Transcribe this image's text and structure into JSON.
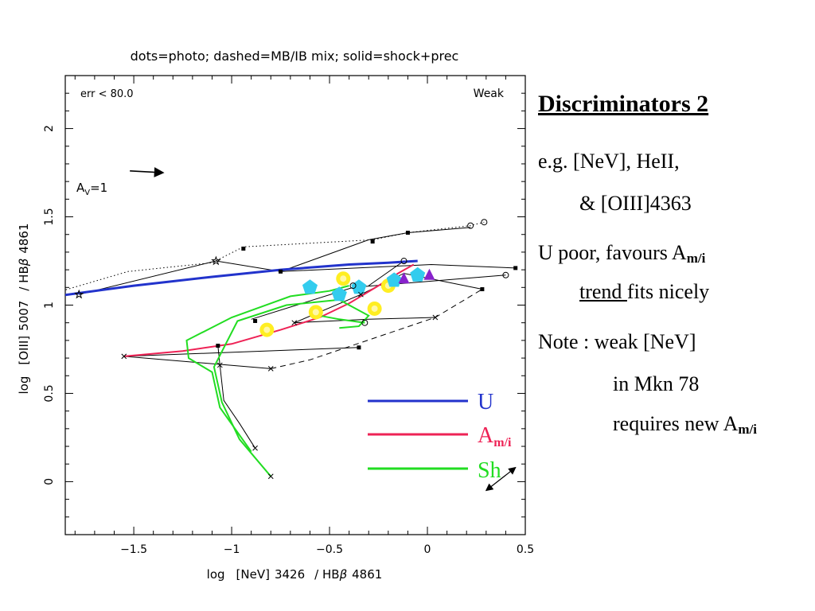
{
  "slide": {
    "title": "Discriminators 2",
    "bullets": [
      "e.g. [NeV], HeII,",
      "& [OIII]4363",
      "U poor,  favours A",
      "m/i",
      "trend ",
      "fits nicely",
      "Note : weak [NeV]",
      "in Mkn 78",
      "requires new A",
      "m/i"
    ]
  },
  "chart_data": {
    "type": "scatter",
    "title": "dots=photo; dashed=MB/IB mix; solid=shock+prec",
    "xlabel_parts": [
      "log",
      "[NeV]",
      "3426",
      "/ HB",
      "β",
      "4861"
    ],
    "ylabel_parts": [
      "log",
      "[OIII]",
      "5007",
      "/ HB",
      "β",
      "4861"
    ],
    "xlim": [
      -1.85,
      0.5
    ],
    "ylim": [
      -0.3,
      2.3
    ],
    "xticks": [
      -1.5,
      -1,
      -0.5,
      0,
      0.5
    ],
    "xtick_labels": [
      "−1.5",
      "−1",
      "−0.5",
      "0",
      "0.5"
    ],
    "yticks": [
      0,
      0.5,
      1,
      1.5,
      2
    ],
    "ytick_labels": [
      "0",
      "0.5",
      "1",
      "1.5",
      "2"
    ],
    "corner_labels": {
      "err": "err <  80.0",
      "weak": "Weak"
    },
    "av_label": {
      "text": "A",
      "sub": "V",
      "suffix": "=1"
    },
    "av_arrow": {
      "from": [
        -1.52,
        1.76
      ],
      "to": [
        -1.35,
        1.75
      ]
    },
    "colors": {
      "U": "#2233cc",
      "Am": "#ee2255",
      "Sh": "#22dd22",
      "cyan": "#33ccee",
      "yellow": "#ffee22",
      "purple": "#8822cc",
      "black": "#000000"
    },
    "legend": [
      {
        "name": "U",
        "sub": "",
        "color": "#2233cc"
      },
      {
        "name": "A",
        "sub": "m/i",
        "color": "#ee2255"
      },
      {
        "name": "Sh",
        "sub": "",
        "color": "#22dd22"
      }
    ],
    "lines": [
      {
        "style": "dotted",
        "color": "#000000",
        "points": [
          [
            -1.9,
            1.07
          ],
          [
            -1.53,
            1.19
          ],
          [
            -1.1,
            1.24
          ],
          [
            -0.94,
            1.33
          ],
          [
            -0.28,
            1.37
          ],
          [
            -0.1,
            1.41
          ],
          [
            0.22,
            1.45
          ],
          [
            0.29,
            1.47
          ]
        ]
      },
      {
        "style": "solid",
        "color": "#000000",
        "points": [
          [
            -1.78,
            1.06
          ],
          [
            -1.08,
            1.25
          ],
          [
            -0.75,
            1.19
          ],
          [
            0.02,
            1.23
          ],
          [
            0.45,
            1.21
          ]
        ]
      },
      {
        "style": "solid",
        "color": "#000000",
        "points": [
          [
            -0.75,
            1.19
          ],
          [
            -0.3,
            1.37
          ],
          [
            -0.1,
            1.41
          ],
          [
            0.22,
            1.44
          ]
        ]
      },
      {
        "style": "solid",
        "color": "#000000",
        "points": [
          [
            -0.3,
            1.11
          ],
          [
            -0.12,
            1.25
          ]
        ]
      },
      {
        "style": "solid",
        "color": "#000000",
        "points": [
          [
            -0.9,
            0.92
          ],
          [
            -0.38,
            1.1
          ],
          [
            0.4,
            1.17
          ]
        ]
      },
      {
        "style": "solid",
        "color": "#000000",
        "points": [
          [
            -0.68,
            0.9
          ],
          [
            -0.34,
            1.06
          ],
          [
            -0.12,
            1.18
          ],
          [
            0.28,
            1.09
          ]
        ]
      },
      {
        "style": "solid",
        "color": "#000000",
        "points": [
          [
            -0.68,
            0.9
          ],
          [
            -0.3,
            0.92
          ],
          [
            0.04,
            0.93
          ]
        ]
      },
      {
        "style": "solid",
        "color": "#000000",
        "points": [
          [
            -1.55,
            0.71
          ],
          [
            -0.35,
            0.76
          ]
        ]
      },
      {
        "style": "solid",
        "color": "#000000",
        "points": [
          [
            -1.55,
            0.71
          ],
          [
            -0.8,
            0.64
          ]
        ]
      },
      {
        "style": "dashed",
        "color": "#000000",
        "points": [
          [
            -0.8,
            0.64
          ],
          [
            -0.6,
            0.69
          ],
          [
            0.04,
            0.93
          ],
          [
            0.28,
            1.09
          ]
        ]
      },
      {
        "style": "solid",
        "color": "#000000",
        "points": [
          [
            -1.07,
            0.77
          ],
          [
            -1.06,
            0.66
          ],
          [
            -1.04,
            0.46
          ],
          [
            -0.96,
            0.33
          ],
          [
            -0.88,
            0.19
          ]
        ]
      },
      {
        "style": "solid",
        "color": "#2233cc",
        "width": 3,
        "points": [
          [
            -1.9,
            1.05
          ],
          [
            -1.5,
            1.11
          ],
          [
            -1.1,
            1.16
          ],
          [
            -0.75,
            1.2
          ],
          [
            -0.4,
            1.23
          ],
          [
            -0.2,
            1.24
          ],
          [
            -0.05,
            1.25
          ]
        ]
      },
      {
        "style": "solid",
        "color": "#ee2255",
        "width": 2,
        "points": [
          [
            -1.55,
            0.71
          ],
          [
            -1.25,
            0.74
          ],
          [
            -1.0,
            0.78
          ],
          [
            -0.75,
            0.86
          ],
          [
            -0.55,
            0.93
          ],
          [
            -0.4,
            1.01
          ],
          [
            -0.25,
            1.11
          ],
          [
            -0.15,
            1.18
          ],
          [
            -0.07,
            1.23
          ]
        ]
      },
      {
        "style": "solid",
        "color": "#22dd22",
        "width": 2,
        "points": [
          [
            -0.8,
            0.03
          ],
          [
            -0.96,
            0.24
          ],
          [
            -1.05,
            0.45
          ],
          [
            -1.09,
            0.65
          ],
          [
            -0.97,
            0.91
          ],
          [
            -0.72,
            1.0
          ],
          [
            -0.45,
            1.03
          ],
          [
            -0.3,
            0.94
          ],
          [
            -0.35,
            0.88
          ],
          [
            -0.45,
            0.87
          ]
        ]
      },
      {
        "style": "solid",
        "color": "#22dd22",
        "width": 2,
        "points": [
          [
            -0.9,
            0.17
          ],
          [
            -1.06,
            0.42
          ],
          [
            -1.1,
            0.62
          ],
          [
            -1.22,
            0.7
          ],
          [
            -1.23,
            0.8
          ],
          [
            -1.0,
            0.93
          ],
          [
            -0.7,
            1.05
          ],
          [
            -0.5,
            1.08
          ],
          [
            -0.4,
            1.11
          ]
        ]
      },
      {
        "style": "solid",
        "color": "#22dd22",
        "width": 2,
        "points": [
          [
            -0.55,
            0.94
          ],
          [
            -0.45,
            0.92
          ],
          [
            -0.32,
            0.9
          ]
        ]
      }
    ],
    "blobs": [
      {
        "shape": "circle",
        "color": "#ffee22",
        "points": [
          [
            -0.82,
            0.86
          ],
          [
            -0.57,
            0.96
          ],
          [
            -0.27,
            0.98
          ],
          [
            -0.2,
            1.11
          ],
          [
            -0.43,
            1.15
          ]
        ]
      },
      {
        "shape": "pentagon",
        "color": "#33ccee",
        "points": [
          [
            -0.6,
            1.1
          ],
          [
            -0.45,
            1.06
          ],
          [
            -0.35,
            1.1
          ],
          [
            -0.05,
            1.17
          ],
          [
            -0.17,
            1.14
          ]
        ]
      },
      {
        "shape": "triangle",
        "color": "#8822cc",
        "points": [
          [
            -0.12,
            1.15
          ],
          [
            0.01,
            1.17
          ]
        ]
      }
    ],
    "markers": [
      {
        "shape": "star",
        "points": [
          [
            -1.78,
            1.06
          ],
          [
            -1.08,
            1.25
          ]
        ]
      },
      {
        "shape": "square",
        "points": [
          [
            -0.94,
            1.32
          ],
          [
            -0.28,
            1.36
          ],
          [
            -0.1,
            1.41
          ],
          [
            -0.88,
            0.91
          ],
          [
            -0.35,
            0.76
          ],
          [
            -1.07,
            0.77
          ],
          [
            0.45,
            1.21
          ],
          [
            0.28,
            1.09
          ],
          [
            -0.75,
            1.19
          ]
        ]
      },
      {
        "shape": "circle",
        "points": [
          [
            0.29,
            1.47
          ],
          [
            0.22,
            1.45
          ],
          [
            0.4,
            1.17
          ],
          [
            -0.38,
            1.11
          ],
          [
            -0.12,
            1.25
          ],
          [
            -0.32,
            0.9
          ]
        ]
      },
      {
        "shape": "cross",
        "points": [
          [
            -1.55,
            0.71
          ],
          [
            -0.8,
            0.64
          ],
          [
            -1.06,
            0.66
          ],
          [
            -0.68,
            0.9
          ],
          [
            -0.88,
            0.19
          ],
          [
            -0.8,
            0.03
          ],
          [
            0.04,
            0.93
          ],
          [
            -0.34,
            1.06
          ]
        ]
      }
    ],
    "double_arrow": {
      "from": [
        0.3,
        -0.05
      ],
      "to": [
        0.45,
        0.08
      ]
    }
  }
}
